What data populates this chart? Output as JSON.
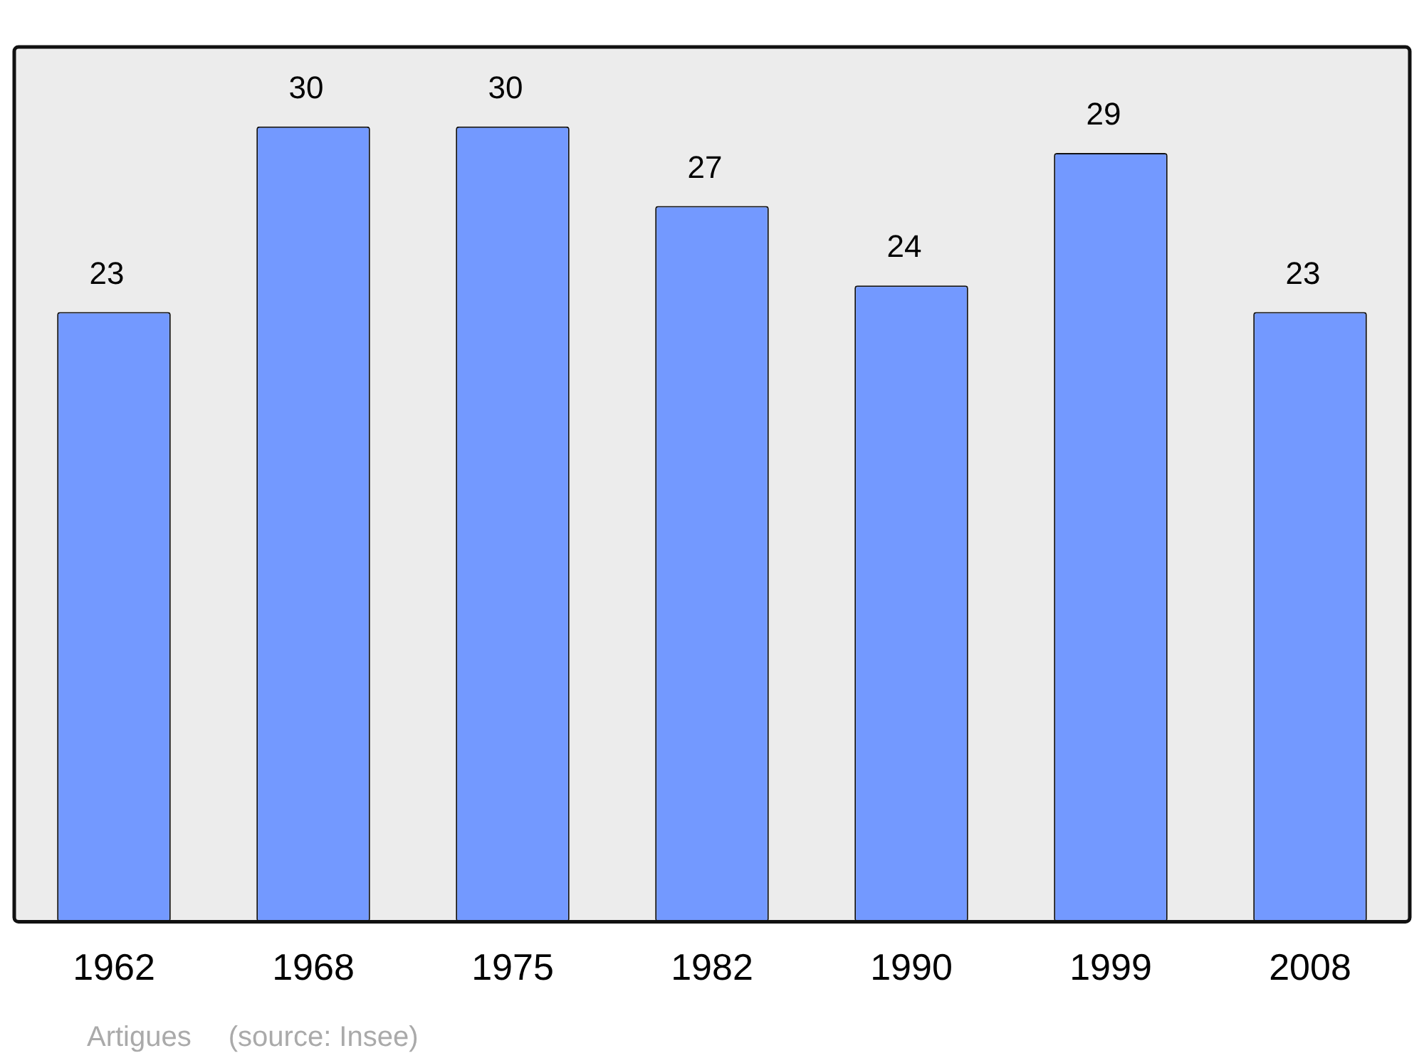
{
  "chart_data": {
    "type": "bar",
    "categories": [
      "1962",
      "1968",
      "1975",
      "1982",
      "1990",
      "1999",
      "2008"
    ],
    "values": [
      23,
      30,
      30,
      27,
      24,
      29,
      23
    ],
    "color": "#7399ff",
    "ylim": [
      0,
      33
    ],
    "data_labels": true,
    "grid": false,
    "legend": false,
    "tick_labels": "x",
    "annotations": [
      "Artigues",
      "(source: Insee)"
    ]
  }
}
